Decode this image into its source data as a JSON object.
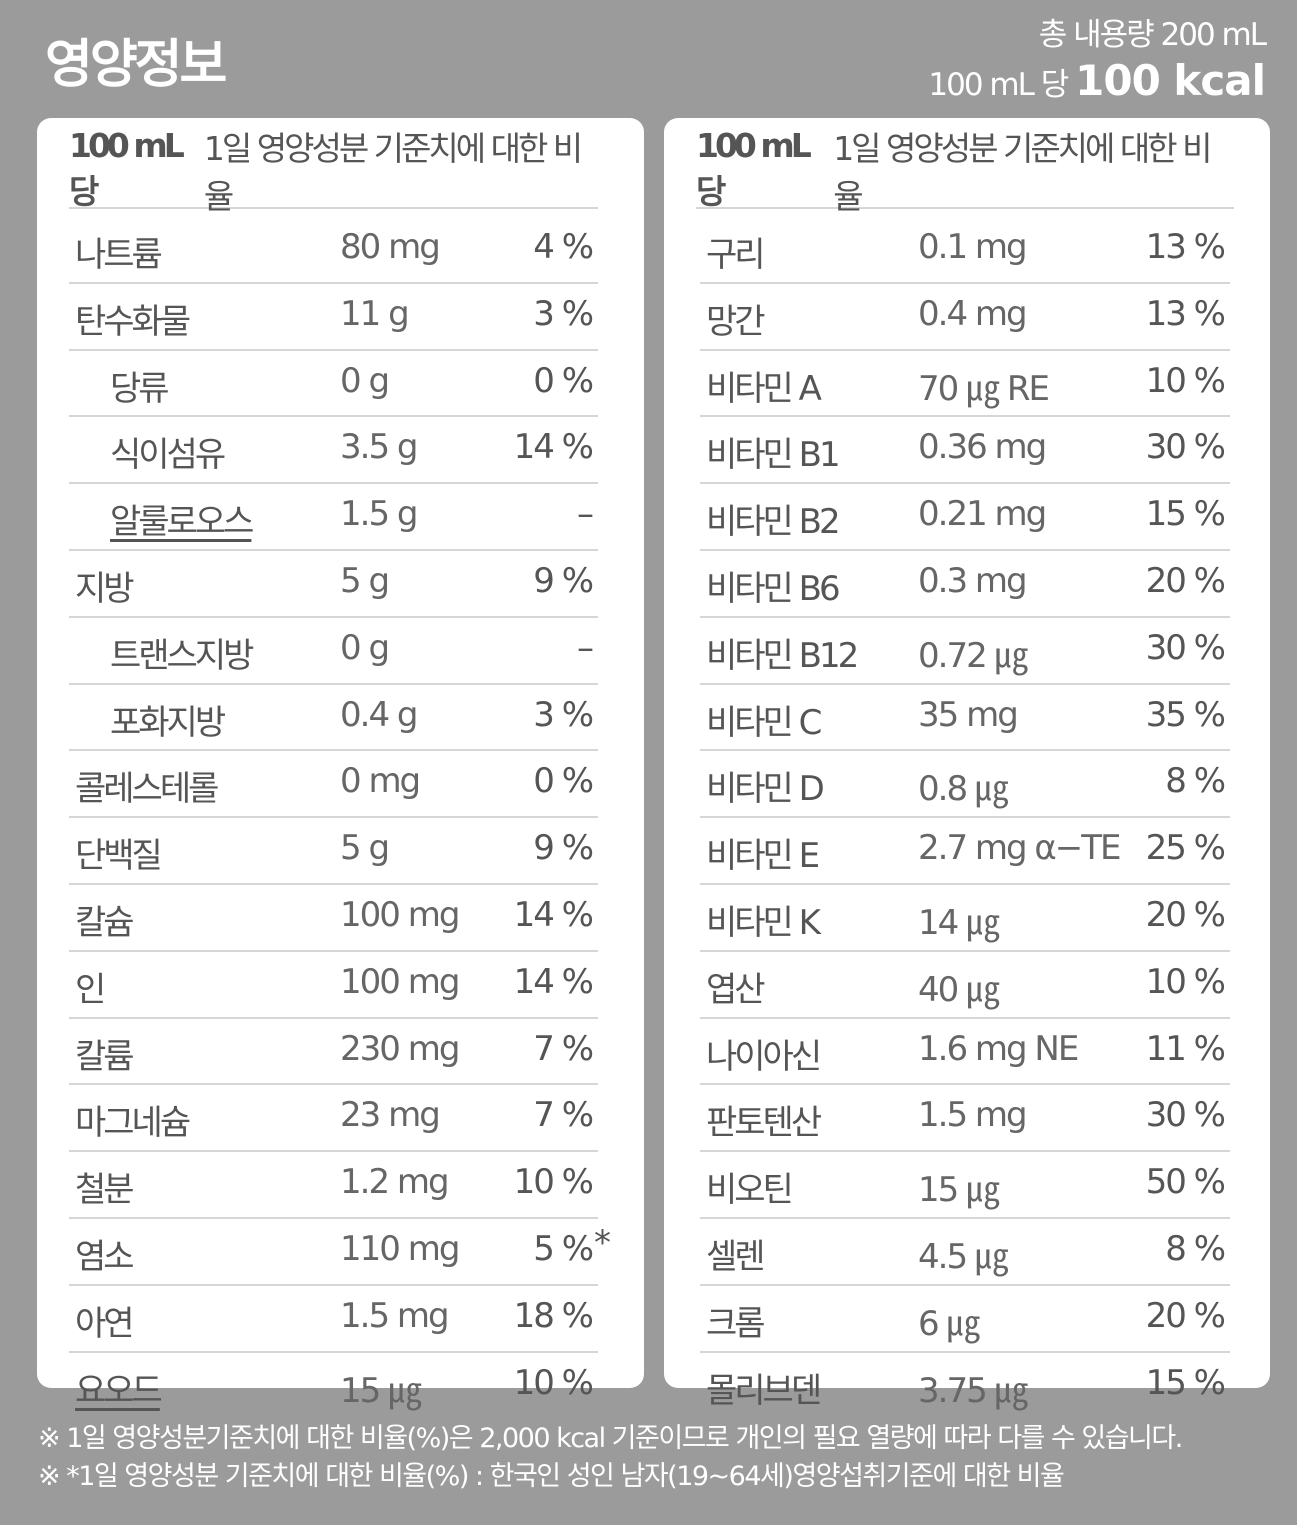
{
  "title": "영양정보",
  "summary": {
    "total_volume": "총 내용량 200 mL",
    "per_label": "100 mL 당",
    "kcal": "100 kcal"
  },
  "table_header": {
    "per": "100 mL당",
    "ratio_label": "1일 영양성분 기준치에 대한 비율"
  },
  "left_rows": [
    {
      "name": "나트륨",
      "amount": "80 mg",
      "pct": "4 %",
      "sub": false
    },
    {
      "name": "탄수화물",
      "amount": "11 g",
      "pct": "3 %",
      "sub": false
    },
    {
      "name": "당류",
      "amount": "0 g",
      "pct": "0 %",
      "sub": true
    },
    {
      "name": "식이섬유",
      "amount": "3.5 g",
      "pct": "14 %",
      "sub": true
    },
    {
      "name": "알룰로오스",
      "amount": "1.5 g",
      "pct": "–",
      "sub": true,
      "underline": true
    },
    {
      "name": "지방",
      "amount": "5 g",
      "pct": "9 %",
      "sub": false
    },
    {
      "name": "트랜스지방",
      "amount": "0 g",
      "pct": "–",
      "sub": true
    },
    {
      "name": "포화지방",
      "amount": "0.4 g",
      "pct": "3 %",
      "sub": true
    },
    {
      "name": "콜레스테롤",
      "amount": "0 mg",
      "pct": "0 %",
      "sub": false
    },
    {
      "name": "단백질",
      "amount": "5 g",
      "pct": "9 %",
      "sub": false
    },
    {
      "name": "칼슘",
      "amount": "100 mg",
      "pct": "14 %",
      "sub": false
    },
    {
      "name": "인",
      "amount": "100 mg",
      "pct": "14 %",
      "sub": false
    },
    {
      "name": "칼륨",
      "amount": "230 mg",
      "pct": "7 %",
      "sub": false
    },
    {
      "name": "마그네슘",
      "amount": "23 mg",
      "pct": "7 %",
      "sub": false
    },
    {
      "name": "철분",
      "amount": "1.2 mg",
      "pct": "10 %",
      "sub": false
    },
    {
      "name": "염소",
      "amount": "110 mg",
      "pct": "5 %",
      "mark": "*",
      "sub": false
    },
    {
      "name": "아연",
      "amount": "1.5 mg",
      "pct": "18 %",
      "sub": false
    },
    {
      "name": "요오드",
      "amount": "15 ㎍",
      "pct": "10 %",
      "sub": false,
      "underline": true
    }
  ],
  "right_rows": [
    {
      "name": "구리",
      "amount": "0.1 mg",
      "pct": "13 %"
    },
    {
      "name": "망간",
      "amount": "0.4 mg",
      "pct": "13 %"
    },
    {
      "name": "비타민 A",
      "amount": "70 ㎍ RE",
      "pct": "10 %"
    },
    {
      "name": "비타민 B1",
      "amount": "0.36 mg",
      "pct": "30 %"
    },
    {
      "name": "비타민 B2",
      "amount": "0.21 mg",
      "pct": "15 %"
    },
    {
      "name": "비타민 B6",
      "amount": "0.3 mg",
      "pct": "20 %"
    },
    {
      "name": "비타민 B12",
      "amount": "0.72 ㎍",
      "pct": "30 %"
    },
    {
      "name": "비타민 C",
      "amount": "35 mg",
      "pct": "35 %"
    },
    {
      "name": "비타민 D",
      "amount": "0.8 ㎍",
      "pct": "8 %"
    },
    {
      "name": "비타민 E",
      "amount": "2.7 mg α−TE",
      "pct": "25 %"
    },
    {
      "name": "비타민 K",
      "amount": "14 ㎍",
      "pct": "20 %"
    },
    {
      "name": "엽산",
      "amount": "40 ㎍",
      "pct": "10 %"
    },
    {
      "name": "나이아신",
      "amount": "1.6 mg NE",
      "pct": "11 %"
    },
    {
      "name": "판토텐산",
      "amount": "1.5 mg",
      "pct": "30 %"
    },
    {
      "name": "비오틴",
      "amount": "15 ㎍",
      "pct": "50 %"
    },
    {
      "name": "셀렌",
      "amount": "4.5 ㎍",
      "pct": "8 %"
    },
    {
      "name": "크롬",
      "amount": "6 ㎍",
      "pct": "20 %"
    },
    {
      "name": "몰리브덴",
      "amount": "3.75 ㎍",
      "pct": "15 %"
    }
  ],
  "footnotes": [
    "※ 1일 영양성분기준치에 대한 비율(%)은 2,000 kcal 기준이므로 개인의 필요 열량에 따라 다를 수 있습니다.",
    "※ *1일 영양성분 기준치에 대한 비율(%) : 한국인 성인 남자(19~64세)영양섭취기준에 대한 비율"
  ]
}
